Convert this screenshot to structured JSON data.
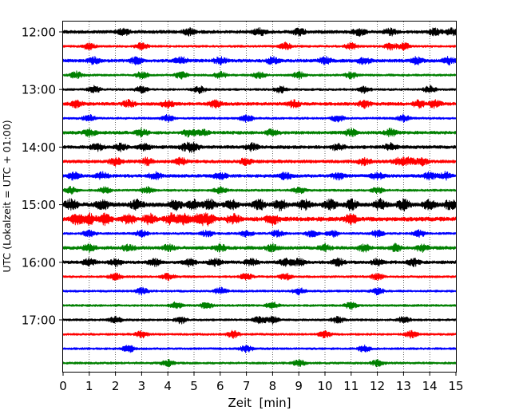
{
  "chart_data": {
    "type": "line",
    "title": "",
    "xlabel": "Zeit  [min]",
    "ylabel": "UTC (Lokalzeit = UTC + 01:00)",
    "xlim": [
      0,
      15
    ],
    "xticks": [
      "0",
      "1",
      "2",
      "3",
      "4",
      "5",
      "6",
      "7",
      "8",
      "9",
      "10",
      "11",
      "12",
      "13",
      "14",
      "15"
    ],
    "yticks": [
      "12:00",
      "13:00",
      "14:00",
      "15:00",
      "16:00",
      "17:00"
    ],
    "traces_per_hour": 4,
    "trace_start": "12:00",
    "trace_count": 24,
    "trace_colors": [
      "#000000",
      "#ff0000",
      "#0000ff",
      "#008000"
    ],
    "grid": "vertical dotted lines at each minute",
    "legend": "none",
    "series": [
      {
        "start": "12:00",
        "color": "#000000",
        "amplitude": "medium",
        "bursts": [
          2.3,
          4.8,
          7.5,
          9.0,
          11.3,
          12.5,
          14.2,
          14.8
        ]
      },
      {
        "start": "12:15",
        "color": "#ff0000",
        "amplitude": "low",
        "bursts": [
          1.0,
          3.0,
          8.5,
          11.0,
          12.5,
          13.0
        ]
      },
      {
        "start": "12:30",
        "color": "#0000ff",
        "amplitude": "medium",
        "bursts": [
          1.2,
          2.8,
          4.5,
          6.0,
          8.0,
          10.0,
          11.5,
          13.5,
          14.7
        ]
      },
      {
        "start": "12:45",
        "color": "#008000",
        "amplitude": "low",
        "bursts": [
          0.5,
          3.0,
          4.5,
          6.0,
          7.5,
          9.0,
          11.0
        ]
      },
      {
        "start": "13:00",
        "color": "#000000",
        "amplitude": "low",
        "bursts": [
          1.2,
          3.0,
          5.2,
          8.3,
          11.5,
          14.0
        ]
      },
      {
        "start": "13:15",
        "color": "#ff0000",
        "amplitude": "medium",
        "bursts": [
          0.5,
          2.5,
          4.0,
          5.8,
          8.8,
          11.5,
          13.6,
          14.2
        ]
      },
      {
        "start": "13:30",
        "color": "#0000ff",
        "amplitude": "low",
        "bursts": [
          1.0,
          4.0,
          7.0,
          10.5,
          13.0
        ]
      },
      {
        "start": "13:45",
        "color": "#008000",
        "amplitude": "medium",
        "bursts": [
          1.0,
          3.0,
          4.8,
          5.3,
          8.0,
          11.0,
          12.5
        ]
      },
      {
        "start": "14:00",
        "color": "#000000",
        "amplitude": "medium",
        "bursts": [
          1.3,
          2.2,
          3.1,
          4.7,
          5.0,
          7.2,
          10.5,
          12.5
        ]
      },
      {
        "start": "14:15",
        "color": "#ff0000",
        "amplitude": "medium",
        "bursts": [
          2.0,
          3.2,
          4.5,
          7.0,
          11.5,
          12.8,
          13.2,
          13.7
        ]
      },
      {
        "start": "14:30",
        "color": "#0000ff",
        "amplitude": "medium",
        "bursts": [
          0.4,
          1.5,
          3.5,
          6.0,
          8.5,
          10.5,
          12.0,
          14.0,
          14.6
        ]
      },
      {
        "start": "14:45",
        "color": "#008000",
        "amplitude": "low",
        "bursts": [
          0.3,
          1.6,
          3.2,
          6.0,
          9.0,
          12.0
        ]
      },
      {
        "start": "15:00",
        "color": "#000000",
        "amplitude": "high",
        "bursts": [
          0.3,
          1.5,
          2.8,
          4.3,
          5.0,
          5.6,
          6.4,
          7.5,
          8.3,
          9.2,
          10.2,
          11.0,
          12.1,
          13.0,
          14.0,
          14.8
        ]
      },
      {
        "start": "15:15",
        "color": "#ff0000",
        "amplitude": "high",
        "bursts": [
          0.5,
          1.0,
          1.6,
          2.5,
          3.3,
          4.1,
          4.6,
          5.2,
          5.55,
          6.5,
          8.0,
          11.0
        ]
      },
      {
        "start": "15:30",
        "color": "#0000ff",
        "amplitude": "low",
        "bursts": [
          1.0,
          3.0,
          5.5,
          7.0,
          8.2,
          9.5,
          10.3,
          12.0,
          13.6
        ]
      },
      {
        "start": "15:45",
        "color": "#008000",
        "amplitude": "medium",
        "bursts": [
          1.0,
          2.5,
          4.0,
          6.0,
          8.0,
          10.0,
          11.5,
          12.7,
          13.7
        ]
      },
      {
        "start": "16:00",
        "color": "#000000",
        "amplitude": "medium",
        "bursts": [
          1.0,
          2.0,
          3.5,
          4.8,
          5.8,
          7.2,
          8.5,
          9.0,
          10.5,
          12.0,
          13.4
        ]
      },
      {
        "start": "16:15",
        "color": "#ff0000",
        "amplitude": "low",
        "bursts": [
          2.0,
          4.0,
          7.0,
          8.5,
          12.0
        ]
      },
      {
        "start": "16:30",
        "color": "#0000ff",
        "amplitude": "low",
        "bursts": [
          3.0,
          6.0,
          9.0,
          12.0
        ]
      },
      {
        "start": "16:45",
        "color": "#008000",
        "amplitude": "low",
        "bursts": [
          4.3,
          5.5,
          8.0,
          11.0
        ]
      },
      {
        "start": "17:00",
        "color": "#000000",
        "amplitude": "low",
        "bursts": [
          2.0,
          4.5,
          7.5,
          8.0,
          10.5,
          13.0
        ]
      },
      {
        "start": "17:15",
        "color": "#ff0000",
        "amplitude": "low",
        "bursts": [
          3.0,
          6.5,
          10.0,
          13.3
        ]
      },
      {
        "start": "17:30",
        "color": "#0000ff",
        "amplitude": "low",
        "bursts": [
          2.5,
          7.0,
          11.5
        ]
      },
      {
        "start": "17:45",
        "color": "#008000",
        "amplitude": "low",
        "bursts": [
          4.0,
          9.0,
          12.0
        ]
      }
    ]
  }
}
